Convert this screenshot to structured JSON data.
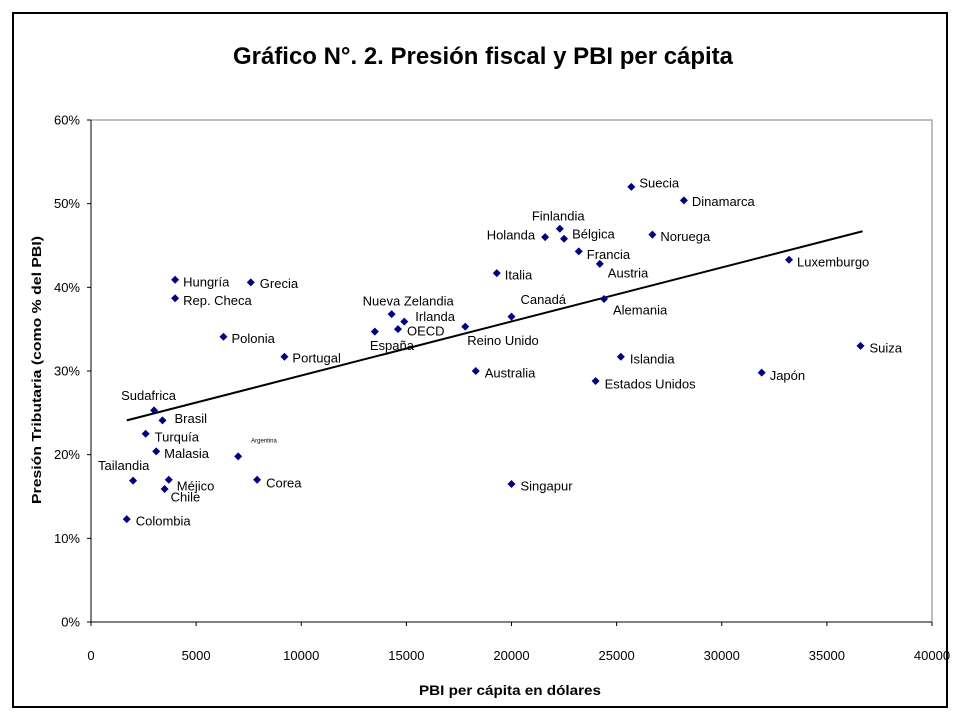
{
  "chart_data": {
    "type": "scatter",
    "title": "Gráfico N°. 2. Presión fiscal y PBI per cápita",
    "xlabel": "PBI per cápita en dólares",
    "ylabel": "Presión Tributaria (como % del PBI)",
    "xlim": [
      0,
      40000
    ],
    "ylim": [
      0,
      60
    ],
    "x_tick_values": [
      0,
      5000,
      10000,
      15000,
      20000,
      25000,
      30000,
      35000,
      40000
    ],
    "x_tick_labels": [
      "0",
      "5000",
      "10000",
      "15000",
      "20000",
      "25000",
      "30000",
      "35000",
      "40000"
    ],
    "y_tick_values": [
      0,
      10,
      20,
      30,
      40,
      50,
      60
    ],
    "y_tick_labels": [
      "0%",
      "10%",
      "20%",
      "30%",
      "40%",
      "50%",
      "60%"
    ],
    "grid": false,
    "legend": "none",
    "marker": "diamond",
    "colors": {
      "marker": "#000080",
      "trendline": "#000000",
      "frame": "#000000"
    },
    "points": [
      {
        "label": "Suecia",
        "x": 25700,
        "y": 52.0
      },
      {
        "label": "Dinamarca",
        "x": 28200,
        "y": 50.4
      },
      {
        "label": "Finlandia",
        "x": 22300,
        "y": 47.0
      },
      {
        "label": "Holanda",
        "x": 21600,
        "y": 46.0
      },
      {
        "label": "Bélgica",
        "x": 22500,
        "y": 45.8
      },
      {
        "label": "Noruega",
        "x": 26700,
        "y": 46.3
      },
      {
        "label": "Francia",
        "x": 23200,
        "y": 44.3
      },
      {
        "label": "Austria",
        "x": 24200,
        "y": 42.8
      },
      {
        "label": "Italia",
        "x": 19300,
        "y": 41.7
      },
      {
        "label": "Luxemburgo",
        "x": 33200,
        "y": 43.3
      },
      {
        "label": "Hungría",
        "x": 4000,
        "y": 40.9
      },
      {
        "label": "Grecia",
        "x": 7600,
        "y": 40.6
      },
      {
        "label": "Rep. Checa",
        "x": 4000,
        "y": 38.7
      },
      {
        "label": "Alemania",
        "x": 24400,
        "y": 38.6
      },
      {
        "label": "Canadá",
        "x": 20000,
        "y": 36.5
      },
      {
        "label": "Nueva Zelandia",
        "x": 14300,
        "y": 36.8
      },
      {
        "label": "Irlanda",
        "x": 14900,
        "y": 35.9
      },
      {
        "label": "OECD",
        "x": 14600,
        "y": 35.0
      },
      {
        "label": "España",
        "x": 13500,
        "y": 34.7
      },
      {
        "label": "Reino Unido",
        "x": 17800,
        "y": 35.3
      },
      {
        "label": "Polonia",
        "x": 6300,
        "y": 34.1
      },
      {
        "label": "Suiza",
        "x": 36600,
        "y": 33.0
      },
      {
        "label": "Islandia",
        "x": 25200,
        "y": 31.7
      },
      {
        "label": "Portugal",
        "x": 9200,
        "y": 31.7
      },
      {
        "label": "Japón",
        "x": 31900,
        "y": 29.8
      },
      {
        "label": "Australia",
        "x": 18300,
        "y": 30.0
      },
      {
        "label": "Estados Unidos",
        "x": 24000,
        "y": 28.8
      },
      {
        "label": "Sudafrica",
        "x": 3000,
        "y": 25.3
      },
      {
        "label": "Brasil",
        "x": 3400,
        "y": 24.1
      },
      {
        "label": "Turquía",
        "x": 2600,
        "y": 22.5
      },
      {
        "label": "Malasia",
        "x": 3100,
        "y": 20.4
      },
      {
        "label": "Argentina",
        "x": 7000,
        "y": 19.8
      },
      {
        "label": "Tailandia",
        "x": 2000,
        "y": 16.9
      },
      {
        "label": "Méjico",
        "x": 3700,
        "y": 17.0
      },
      {
        "label": "Corea",
        "x": 7900,
        "y": 17.0
      },
      {
        "label": "Chile",
        "x": 3500,
        "y": 15.9
      },
      {
        "label": "Singapur",
        "x": 20000,
        "y": 16.5
      },
      {
        "label": "Colombia",
        "x": 1700,
        "y": 12.3
      }
    ],
    "trendline": {
      "type": "linear",
      "x": [
        1700,
        36700
      ],
      "y": [
        24.1,
        46.7
      ]
    }
  }
}
